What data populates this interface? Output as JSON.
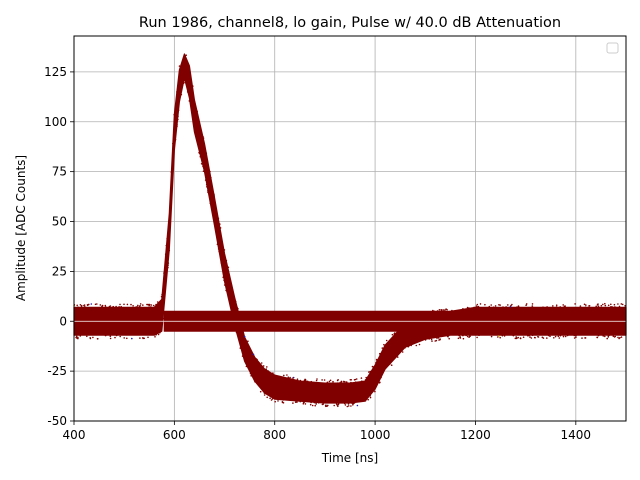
{
  "chart_data": {
    "type": "scatter",
    "title": "Run 1986, channel8, lo gain, Pulse w/ 40.0 dB Attenuation",
    "xlabel": "Time [ns]",
    "ylabel": "Amplitude [ADC Counts]",
    "xlim": [
      400,
      1500
    ],
    "ylim": [
      -50,
      143
    ],
    "xticks": [
      400,
      600,
      800,
      1000,
      1200,
      1400
    ],
    "yticks": [
      -50,
      -25,
      0,
      25,
      50,
      75,
      100,
      125
    ],
    "grid": true,
    "legend": {
      "placement": "top-right",
      "entries": []
    },
    "colors": {
      "points": "#800000",
      "grid": "#b0b0b0",
      "baseline": "#ffffff",
      "accent_points": [
        "#1f1fb4",
        "#e8c020"
      ]
    },
    "series": [
      {
        "band": "pulse-envelope",
        "x": [
          400,
          560,
          575,
          590,
          600,
          610,
          620,
          630,
          640,
          660,
          680,
          700,
          720,
          740,
          760,
          780,
          800,
          850,
          900,
          950,
          980,
          1000,
          1020,
          1060,
          1100,
          1150,
          1200,
          1300,
          1400,
          1500
        ],
        "y": [
          0,
          0,
          3,
          45,
          95,
          118,
          128,
          120,
          103,
          82,
          55,
          27,
          5,
          -14,
          -24,
          -30,
          -33,
          -35,
          -36,
          -36,
          -35,
          -28,
          -18,
          -7,
          -3,
          -1,
          0,
          0,
          0,
          0
        ],
        "half_width": [
          7,
          7,
          8,
          9,
          9,
          8,
          6,
          8,
          8,
          7,
          7,
          7,
          7,
          6,
          6,
          6,
          6,
          5,
          5,
          5,
          5,
          6,
          6,
          6,
          6,
          6,
          7,
          7,
          7,
          7
        ]
      },
      {
        "band": "flat-baseline",
        "x": [
          580,
          1200
        ],
        "y": [
          0,
          0
        ],
        "half_width": [
          5,
          5
        ]
      }
    ]
  }
}
